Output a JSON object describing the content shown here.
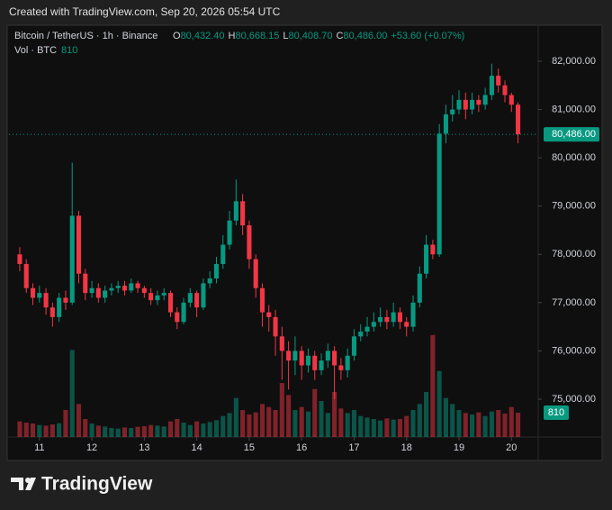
{
  "header": {
    "title": "Created with TradingView.com, Sep 20, 2026 05:54 UTC"
  },
  "chart_data": {
    "type": "candlestick",
    "legend": {
      "symbol": "Bitcoin / TetherUS · 1h · Binance",
      "o": "O",
      "open": "80,432.40",
      "h": "H",
      "high": "80,668.15",
      "l": "L",
      "low": "80,408.70",
      "c": "C",
      "close": "80,486.00",
      "change": "+53.60 (+0.07%)",
      "volume_title": "Vol · BTC"
    },
    "up_color": "#089981",
    "down_color": "#f23645",
    "xlim": [
      10.42,
      20.51
    ],
    "ylim": [
      74216,
      82709
    ],
    "xticks": [
      11,
      12,
      13,
      14,
      15,
      16,
      17,
      18,
      19,
      20
    ],
    "yticks": [
      {
        "value": 75000,
        "label": "75,000.00"
      },
      {
        "value": 76000,
        "label": "76,000.00"
      },
      {
        "value": 77000,
        "label": "77,000.00"
      },
      {
        "value": 78000,
        "label": "78,000.00"
      },
      {
        "value": 79000,
        "label": "79,000.00"
      },
      {
        "value": 80000,
        "label": "80,000.00"
      },
      {
        "value": 81000,
        "label": "81,000.00"
      },
      {
        "value": 82000,
        "label": "82,000.00"
      }
    ],
    "grid": false,
    "last_price": {
      "value": 80486,
      "label": "80,486.00"
    },
    "x": [
      10.625,
      10.75,
      10.875,
      11,
      11.125,
      11.25,
      11.375,
      11.5,
      11.625,
      11.75,
      11.875,
      12,
      12.125,
      12.25,
      12.375,
      12.5,
      12.625,
      12.75,
      12.875,
      13,
      13.125,
      13.25,
      13.375,
      13.5,
      13.625,
      13.75,
      13.875,
      14,
      14.125,
      14.25,
      14.375,
      14.5,
      14.625,
      14.75,
      14.875,
      15,
      15.125,
      15.25,
      15.375,
      15.5,
      15.625,
      15.75,
      15.875,
      16,
      16.125,
      16.25,
      16.375,
      16.5,
      16.625,
      16.75,
      16.875,
      17,
      17.125,
      17.25,
      17.375,
      17.5,
      17.625,
      17.75,
      17.875,
      18,
      18.125,
      18.25,
      18.375,
      18.5,
      18.625,
      18.75,
      18.875,
      19,
      19.125,
      19.25,
      19.375,
      19.5,
      19.625,
      19.75,
      19.875,
      20,
      20.125
    ],
    "open": [
      78000,
      77800,
      77300,
      77100,
      77200,
      76900,
      76700,
      77100,
      77000,
      78800,
      77600,
      77200,
      77300,
      77100,
      77250,
      77300,
      77350,
      77250,
      77400,
      77300,
      77200,
      77050,
      77150,
      77200,
      76800,
      76600,
      77000,
      77200,
      76900,
      77400,
      77500,
      77800,
      78200,
      78700,
      79100,
      78600,
      77900,
      77300,
      76800,
      76700,
      76300,
      76000,
      75800,
      76000,
      75700,
      75900,
      75600,
      75800,
      76000,
      75700,
      75600,
      75900,
      76300,
      76400,
      76500,
      76600,
      76700,
      76600,
      76800,
      76600,
      76500,
      77000,
      77600,
      78200,
      78000,
      80500,
      80900,
      81000,
      81200,
      81000,
      81200,
      81100,
      81300,
      81700,
      81500,
      81300,
      81100
    ],
    "high": [
      78150,
      77900,
      77400,
      77350,
      77300,
      77000,
      77200,
      77250,
      79900,
      78900,
      77700,
      77450,
      77400,
      77350,
      77400,
      77450,
      77450,
      77500,
      77450,
      77350,
      77300,
      77250,
      77300,
      77250,
      76900,
      77100,
      77300,
      77250,
      77500,
      77650,
      77950,
      78400,
      78900,
      79550,
      79250,
      78700,
      78000,
      77400,
      76950,
      76850,
      76500,
      76200,
      76300,
      76100,
      76050,
      76000,
      75950,
      76150,
      76100,
      75850,
      76050,
      76450,
      76550,
      76700,
      76800,
      76900,
      76850,
      77000,
      76900,
      76700,
      77150,
      77750,
      78400,
      78300,
      80700,
      81100,
      81300,
      81400,
      81350,
      81350,
      81300,
      81450,
      81950,
      81850,
      81600,
      81350,
      81150
    ],
    "low": [
      77650,
      77200,
      76950,
      77000,
      76750,
      76500,
      76600,
      76850,
      76950,
      77400,
      77050,
      77100,
      77000,
      77000,
      77150,
      77200,
      77150,
      77200,
      77200,
      77100,
      76950,
      76950,
      77050,
      76700,
      76450,
      76550,
      76900,
      76700,
      76850,
      77300,
      77400,
      77700,
      78100,
      78600,
      78400,
      77700,
      77100,
      76500,
      76400,
      75900,
      75400,
      75200,
      75500,
      75400,
      75550,
      75400,
      75500,
      75650,
      75000,
      75400,
      75450,
      75800,
      76200,
      76300,
      76400,
      76500,
      76450,
      76500,
      76450,
      76300,
      76400,
      76900,
      77500,
      77900,
      77950,
      80300,
      80750,
      80900,
      80800,
      80900,
      80950,
      81000,
      81200,
      81350,
      81150,
      80950,
      80300
    ],
    "close": [
      77800,
      77300,
      77100,
      77200,
      76900,
      76700,
      77100,
      77000,
      78800,
      77600,
      77200,
      77300,
      77100,
      77250,
      77300,
      77350,
      77250,
      77400,
      77300,
      77200,
      77050,
      77150,
      77200,
      76800,
      76600,
      77000,
      77200,
      76900,
      77400,
      77500,
      77800,
      78200,
      78700,
      79100,
      78600,
      77900,
      77300,
      76800,
      76700,
      76300,
      76000,
      75800,
      76000,
      75700,
      75900,
      75600,
      75800,
      76000,
      75700,
      75600,
      75900,
      76300,
      76400,
      76500,
      76600,
      76700,
      76600,
      76800,
      76600,
      76500,
      77000,
      77600,
      78200,
      78000,
      80500,
      80900,
      81000,
      81200,
      81000,
      81200,
      81100,
      81300,
      81700,
      81500,
      81300,
      81100,
      80486
    ],
    "volume": [
      520,
      480,
      450,
      400,
      380,
      420,
      460,
      900,
      2900,
      1100,
      600,
      450,
      380,
      350,
      300,
      280,
      320,
      300,
      340,
      360,
      400,
      380,
      350,
      520,
      600,
      480,
      400,
      520,
      450,
      500,
      560,
      700,
      800,
      1300,
      900,
      750,
      820,
      1100,
      1000,
      900,
      1800,
      1400,
      900,
      1000,
      850,
      1600,
      1200,
      800,
      1500,
      950,
      800,
      900,
      700,
      650,
      600,
      550,
      620,
      580,
      600,
      700,
      900,
      1100,
      1500,
      3400,
      2200,
      1300,
      1100,
      900,
      800,
      750,
      820,
      700,
      850,
      900,
      780,
      1000,
      810
    ]
  },
  "footer": {
    "brand": "TradingView"
  }
}
